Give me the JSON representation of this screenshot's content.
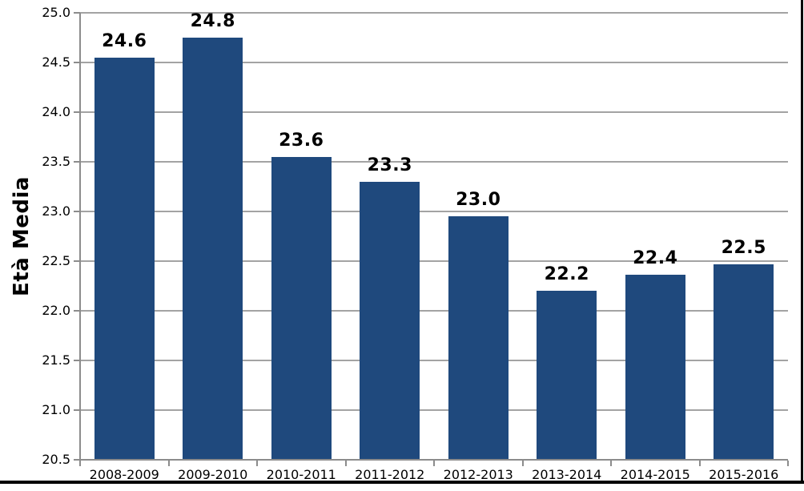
{
  "chart_data": {
    "type": "bar",
    "title": "",
    "ylabel": "Età Media",
    "xlabel": "",
    "categories": [
      "2008-2009",
      "2009-2010",
      "2010-2011",
      "2011-2012",
      "2012-2013",
      "2013-2014",
      "2014-2015",
      "2015-2016"
    ],
    "values": [
      24.55,
      24.75,
      23.55,
      23.3,
      22.95,
      22.2,
      22.36,
      22.47
    ],
    "value_labels": [
      "24.6",
      "24.8",
      "23.6",
      "23.3",
      "23.0",
      "22.2",
      "22.4",
      "22.5"
    ],
    "ylim": [
      20.5,
      25.0
    ],
    "ytick_step": 0.5,
    "yticks": [
      "25.0",
      "24.5",
      "24.0",
      "23.5",
      "23.0",
      "22.5",
      "22.0",
      "21.5",
      "21.0",
      "20.5"
    ],
    "grid": true,
    "legend": "none",
    "colors": {
      "bar": "#1F497D",
      "gridline": "#A3A3A3",
      "axis": "#8C8C8C",
      "text": "#000000",
      "frame": "#000000"
    }
  }
}
